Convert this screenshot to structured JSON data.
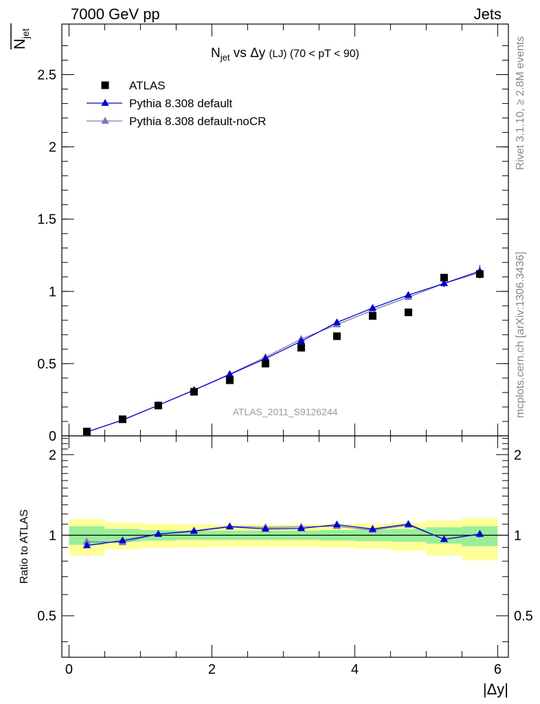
{
  "header": {
    "left": "7000 GeV pp",
    "right": "Jets"
  },
  "side_text": {
    "rivet": "Rivet 3.1.10, ≥ 2.8M events",
    "mcplots": "mcplots.cern.ch [arXiv:1306.3436]"
  },
  "chart_data": [
    {
      "type": "scatter",
      "panel": "main",
      "title": "N_jet vs Δy (LJ) (70 < pT <  90)",
      "ylabel": "N_jet (overlined)",
      "watermark": "ATLAS_2011_S9126244",
      "xlim": [
        -0.1,
        6.15
      ],
      "ylim": [
        0,
        2.85
      ],
      "yticks": [
        0,
        0.5,
        1,
        1.5,
        2,
        2.5
      ],
      "ytick_labels": [
        "0",
        "0.5",
        "1",
        "1.5",
        "2",
        "2.5"
      ],
      "legend_position": "top-left",
      "series": [
        {
          "name": "ATLAS",
          "marker": "square",
          "color": "#000000",
          "x": [
            0.25,
            0.75,
            1.25,
            1.75,
            2.25,
            2.75,
            3.25,
            3.75,
            4.25,
            4.75,
            5.25,
            5.75
          ],
          "y": [
            0.03,
            0.115,
            0.21,
            0.305,
            0.385,
            0.5,
            0.61,
            0.69,
            0.83,
            0.855,
            1.095,
            1.12
          ],
          "yerr": [
            0.003,
            0.004,
            0.006,
            0.008,
            0.01,
            0.012,
            0.015,
            0.018,
            0.02,
            0.02,
            0.025,
            0.03
          ]
        },
        {
          "name": "Pythia 8.308 default",
          "marker": "triangle",
          "color": "#0000cc",
          "x": [
            0.25,
            0.75,
            1.25,
            1.75,
            2.25,
            2.75,
            3.25,
            3.75,
            4.25,
            4.75,
            5.25,
            5.75
          ],
          "y": [
            0.027,
            0.11,
            0.212,
            0.316,
            0.425,
            0.535,
            0.655,
            0.785,
            0.885,
            0.975,
            1.055,
            1.14
          ],
          "yerr": [
            0.002,
            0.003,
            0.004,
            0.005,
            0.006,
            0.008,
            0.01,
            0.012,
            0.015,
            0.02,
            0.025,
            0.04
          ]
        },
        {
          "name": "Pythia 8.308 default-noCR",
          "marker": "triangle",
          "color": "#7777bb",
          "x": [
            0.25,
            0.75,
            1.25,
            1.75,
            2.25,
            2.75,
            3.25,
            3.75,
            4.25,
            4.75,
            5.25,
            5.75
          ],
          "y": [
            0.028,
            0.108,
            0.212,
            0.318,
            0.428,
            0.545,
            0.67,
            0.77,
            0.87,
            0.96,
            1.055,
            1.13
          ],
          "yerr": [
            0.002,
            0.003,
            0.004,
            0.005,
            0.006,
            0.008,
            0.01,
            0.012,
            0.015,
            0.02,
            0.025,
            0.04
          ]
        }
      ]
    },
    {
      "type": "line",
      "panel": "ratio",
      "ylabel": "Ratio to ATLAS",
      "xlabel": "|Δy|",
      "xlim": [
        -0.1,
        6.15
      ],
      "ylim": [
        0.35,
        2.35
      ],
      "log_y": true,
      "xticks": [
        0,
        2,
        4,
        6
      ],
      "xtick_labels": [
        "0",
        "2",
        "4",
        "6"
      ],
      "yticks": [
        0.5,
        1,
        2
      ],
      "ytick_labels": [
        "0.5",
        "1",
        "2"
      ],
      "bands": {
        "bin_edges": [
          0,
          0.5,
          1,
          1.5,
          2,
          2.5,
          3,
          3.5,
          4,
          4.5,
          5,
          5.5,
          6
        ],
        "inner_color": "#99ee99",
        "outer_color": "#ffff99",
        "inner_low": [
          0.92,
          0.945,
          0.955,
          0.96,
          0.96,
          0.96,
          0.96,
          0.955,
          0.95,
          0.945,
          0.93,
          0.91
        ],
        "inner_high": [
          1.08,
          1.055,
          1.045,
          1.04,
          1.04,
          1.04,
          1.04,
          1.045,
          1.05,
          1.055,
          1.07,
          1.08
        ],
        "outer_low": [
          0.84,
          0.885,
          0.895,
          0.9,
          0.905,
          0.905,
          0.905,
          0.9,
          0.89,
          0.875,
          0.84,
          0.805
        ],
        "outer_high": [
          1.15,
          1.115,
          1.105,
          1.1,
          1.095,
          1.095,
          1.095,
          1.1,
          1.105,
          1.115,
          1.135,
          1.16
        ]
      },
      "series": [
        {
          "name": "Pythia 8.308 default",
          "color": "#0000cc",
          "x": [
            0.25,
            0.75,
            1.25,
            1.75,
            2.25,
            2.75,
            3.25,
            3.75,
            4.25,
            4.75,
            5.25,
            5.75
          ],
          "y": [
            0.915,
            0.955,
            1.01,
            1.035,
            1.075,
            1.055,
            1.06,
            1.095,
            1.055,
            1.1,
            0.965,
            1.01
          ],
          "yerr": [
            0.008,
            0.008,
            0.008,
            0.008,
            0.01,
            0.01,
            0.01,
            0.012,
            0.014,
            0.016,
            0.02,
            0.03
          ]
        },
        {
          "name": "Pythia 8.308 default-noCR",
          "color": "#7777bb",
          "x": [
            0.25,
            0.75,
            1.25,
            1.75,
            2.25,
            2.75,
            3.25,
            3.75,
            4.25,
            4.75,
            5.25,
            5.75
          ],
          "y": [
            0.945,
            0.94,
            1.01,
            1.04,
            1.08,
            1.07,
            1.075,
            1.08,
            1.045,
            1.09,
            0.965,
            1.01
          ],
          "yerr": [
            0.008,
            0.008,
            0.008,
            0.008,
            0.01,
            0.01,
            0.01,
            0.012,
            0.014,
            0.016,
            0.02,
            0.03
          ]
        }
      ]
    }
  ]
}
